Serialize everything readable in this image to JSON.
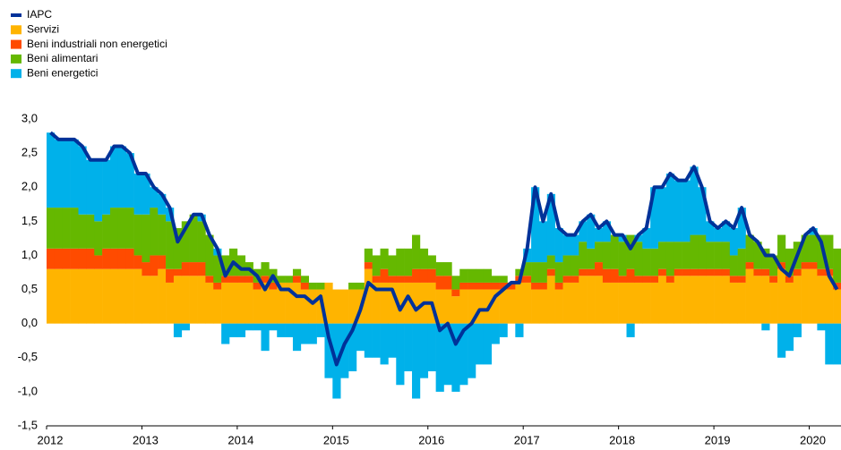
{
  "chart_data": {
    "type": "bar",
    "stacked": true,
    "categories": [
      "2012",
      null,
      null,
      null,
      null,
      null,
      null,
      null,
      null,
      null,
      null,
      null,
      "2013",
      null,
      null,
      null,
      null,
      null,
      null,
      null,
      null,
      null,
      null,
      null,
      "2014",
      null,
      null,
      null,
      null,
      null,
      null,
      null,
      null,
      null,
      null,
      null,
      "2015",
      null,
      null,
      null,
      null,
      null,
      null,
      null,
      null,
      null,
      null,
      null,
      "2016",
      null,
      null,
      null,
      null,
      null,
      null,
      null,
      null,
      null,
      null,
      null,
      "2017",
      null,
      null,
      null,
      null,
      null,
      null,
      null,
      null,
      null,
      null,
      null,
      "2018",
      null,
      null,
      null,
      null,
      null,
      null,
      null,
      null,
      null,
      null,
      null,
      "2019",
      null,
      null,
      null,
      null,
      null,
      null,
      null,
      null,
      null,
      null,
      null,
      "2020",
      null,
      null,
      null
    ],
    "series": [
      {
        "name": "IAPC",
        "type": "line",
        "color": "#003299",
        "values": [
          2.8,
          2.7,
          2.7,
          2.7,
          2.6,
          2.4,
          2.4,
          2.4,
          2.6,
          2.6,
          2.5,
          2.2,
          2.2,
          2.0,
          1.9,
          1.7,
          1.2,
          1.4,
          1.6,
          1.6,
          1.3,
          1.1,
          0.7,
          0.9,
          0.8,
          0.8,
          0.7,
          0.5,
          0.7,
          0.5,
          0.5,
          0.4,
          0.4,
          0.3,
          0.4,
          -0.2,
          -0.6,
          -0.3,
          -0.1,
          0.2,
          0.6,
          0.5,
          0.5,
          0.5,
          0.2,
          0.4,
          0.2,
          0.3,
          0.3,
          -0.1,
          0.0,
          -0.3,
          -0.1,
          0.0,
          0.2,
          0.2,
          0.4,
          0.5,
          0.6,
          0.6,
          1.1,
          2.0,
          1.5,
          1.9,
          1.4,
          1.3,
          1.3,
          1.5,
          1.6,
          1.4,
          1.5,
          1.3,
          1.3,
          1.1,
          1.3,
          1.4,
          2.0,
          2.0,
          2.2,
          2.1,
          2.1,
          2.3,
          2.0,
          1.5,
          1.4,
          1.5,
          1.4,
          1.7,
          1.3,
          1.2,
          1.0,
          1.0,
          0.8,
          0.7,
          1.0,
          1.3,
          1.4,
          1.2,
          0.7,
          0.5
        ]
      },
      {
        "name": "Servizi",
        "color": "#ffb400",
        "values": [
          0.8,
          0.8,
          0.8,
          0.8,
          0.8,
          0.8,
          0.8,
          0.8,
          0.8,
          0.8,
          0.8,
          0.8,
          0.7,
          0.7,
          0.8,
          0.6,
          0.7,
          0.7,
          0.7,
          0.7,
          0.6,
          0.5,
          0.6,
          0.6,
          0.6,
          0.6,
          0.5,
          0.6,
          0.5,
          0.6,
          0.6,
          0.6,
          0.5,
          0.5,
          0.5,
          0.6,
          0.5,
          0.5,
          0.5,
          0.5,
          0.8,
          0.6,
          0.6,
          0.6,
          0.6,
          0.6,
          0.6,
          0.6,
          0.6,
          0.5,
          0.5,
          0.4,
          0.5,
          0.5,
          0.5,
          0.5,
          0.5,
          0.5,
          0.5,
          0.6,
          0.6,
          0.5,
          0.5,
          0.7,
          0.5,
          0.6,
          0.6,
          0.7,
          0.7,
          0.7,
          0.6,
          0.6,
          0.6,
          0.6,
          0.6,
          0.6,
          0.6,
          0.7,
          0.6,
          0.7,
          0.7,
          0.7,
          0.7,
          0.7,
          0.7,
          0.7,
          0.6,
          0.6,
          0.8,
          0.7,
          0.7,
          0.6,
          0.8,
          0.6,
          0.7,
          0.8,
          0.8,
          0.7,
          0.7,
          0.5
        ]
      },
      {
        "name": "Beni industriali non energetici",
        "color": "#ff4b00",
        "values": [
          0.3,
          0.3,
          0.3,
          0.3,
          0.3,
          0.3,
          0.2,
          0.3,
          0.3,
          0.3,
          0.3,
          0.2,
          0.2,
          0.3,
          0.2,
          0.2,
          0.1,
          0.2,
          0.2,
          0.2,
          0.1,
          0.1,
          0.1,
          0.1,
          0.1,
          0.1,
          0.1,
          0.1,
          0.1,
          0.0,
          0.0,
          0.1,
          0.1,
          0.0,
          0.0,
          0.0,
          0.0,
          0.0,
          0.0,
          0.0,
          0.1,
          0.1,
          0.2,
          0.1,
          0.1,
          0.1,
          0.2,
          0.2,
          0.2,
          0.2,
          0.2,
          0.1,
          0.1,
          0.1,
          0.1,
          0.1,
          0.1,
          0.1,
          0.1,
          0.1,
          0.1,
          0.1,
          0.1,
          0.1,
          0.1,
          0.1,
          0.1,
          0.1,
          0.1,
          0.2,
          0.2,
          0.2,
          0.1,
          0.2,
          0.1,
          0.1,
          0.1,
          0.1,
          0.1,
          0.1,
          0.1,
          0.1,
          0.1,
          0.1,
          0.1,
          0.1,
          0.1,
          0.1,
          0.1,
          0.1,
          0.1,
          0.1,
          0.1,
          0.1,
          0.1,
          0.1,
          0.1,
          0.1,
          0.1,
          0.1
        ]
      },
      {
        "name": "Beni alimentari",
        "color": "#65b800",
        "values": [
          0.6,
          0.6,
          0.6,
          0.6,
          0.5,
          0.5,
          0.5,
          0.5,
          0.6,
          0.6,
          0.6,
          0.6,
          0.7,
          0.7,
          0.6,
          0.7,
          0.6,
          0.6,
          0.7,
          0.6,
          0.6,
          0.4,
          0.3,
          0.4,
          0.3,
          0.2,
          0.2,
          0.2,
          0.2,
          0.1,
          0.1,
          0.1,
          0.1,
          0.1,
          0.1,
          0.0,
          0.0,
          0.0,
          0.1,
          0.1,
          0.2,
          0.3,
          0.3,
          0.3,
          0.4,
          0.4,
          0.5,
          0.3,
          0.2,
          0.2,
          0.2,
          0.2,
          0.2,
          0.2,
          0.2,
          0.2,
          0.1,
          0.1,
          0.0,
          0.1,
          0.2,
          0.3,
          0.3,
          0.2,
          0.3,
          0.3,
          0.3,
          0.4,
          0.3,
          0.3,
          0.4,
          0.5,
          0.5,
          0.5,
          0.5,
          0.4,
          0.4,
          0.4,
          0.5,
          0.4,
          0.4,
          0.5,
          0.5,
          0.4,
          0.4,
          0.4,
          0.3,
          0.4,
          0.4,
          0.4,
          0.3,
          0.3,
          0.4,
          0.4,
          0.4,
          0.4,
          0.4,
          0.5,
          0.5,
          0.5
        ]
      },
      {
        "name": "Beni energetici",
        "color": "#00b1ea",
        "values": [
          1.1,
          1.0,
          1.0,
          1.0,
          1.0,
          0.8,
          0.9,
          0.8,
          0.9,
          0.9,
          0.8,
          0.6,
          0.6,
          0.3,
          0.3,
          0.2,
          -0.2,
          -0.1,
          0.0,
          0.1,
          0.0,
          0.1,
          -0.3,
          -0.2,
          -0.2,
          -0.1,
          -0.1,
          -0.4,
          -0.1,
          -0.2,
          -0.2,
          -0.4,
          -0.3,
          -0.3,
          -0.2,
          -0.8,
          -1.1,
          -0.8,
          -0.7,
          -0.4,
          -0.5,
          -0.5,
          -0.6,
          -0.5,
          -0.9,
          -0.7,
          -1.1,
          -0.8,
          -0.7,
          -1.0,
          -0.9,
          -1.0,
          -0.9,
          -0.8,
          -0.6,
          -0.6,
          -0.3,
          -0.2,
          0.0,
          -0.2,
          0.2,
          1.1,
          0.6,
          0.9,
          0.5,
          0.3,
          0.3,
          0.3,
          0.5,
          0.2,
          0.3,
          0.0,
          0.1,
          -0.2,
          0.1,
          0.3,
          0.9,
          0.8,
          1.0,
          0.9,
          0.9,
          1.0,
          0.7,
          0.3,
          0.2,
          0.3,
          0.4,
          0.6,
          0.0,
          0.0,
          -0.1,
          0.0,
          -0.5,
          -0.4,
          -0.2,
          0.0,
          0.1,
          -0.1,
          -0.6,
          -0.6
        ]
      }
    ],
    "ylim": [
      -1.5,
      3.0
    ],
    "yticks": [
      {
        "value": -1.5,
        "label": "-1,5"
      },
      {
        "value": -1,
        "label": "-1,0"
      },
      {
        "value": -0.5,
        "label": "-0,5"
      },
      {
        "value": 0,
        "label": "0,0"
      },
      {
        "value": 0.5,
        "label": "0,5"
      },
      {
        "value": 1,
        "label": "1,0"
      },
      {
        "value": 1.5,
        "label": "1,5"
      },
      {
        "value": 2,
        "label": "2,0"
      },
      {
        "value": 2.5,
        "label": "2,5"
      },
      {
        "value": 3,
        "label": "3,0"
      }
    ],
    "legend": "top-left",
    "grid": false
  }
}
